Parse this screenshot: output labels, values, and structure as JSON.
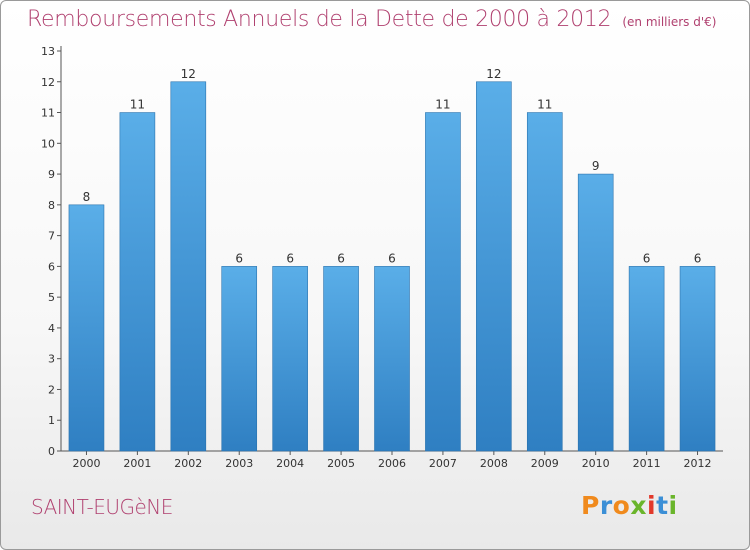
{
  "header": {
    "title": "Remboursements Annuels de la Dette de 2000 à 2012",
    "unit": "(en milliers d'€)"
  },
  "footer": {
    "location": "SAINT-EUGèNE",
    "logo": "Proxiti",
    "logo_colors": [
      "#f08a1d",
      "#3b8fd6",
      "#f08a1d",
      "#6ab52b",
      "#e2392b",
      "#3b8fd6",
      "#6ab52b"
    ]
  },
  "colors": {
    "bar_top": "#5aaee8",
    "bar_bottom": "#2f7fc2",
    "title": "#b0406f",
    "text": "#333333"
  },
  "chart_data": {
    "type": "bar",
    "categories": [
      "2000",
      "2001",
      "2002",
      "2003",
      "2004",
      "2005",
      "2006",
      "2007",
      "2008",
      "2009",
      "2010",
      "2011",
      "2012"
    ],
    "values": [
      8,
      11,
      12,
      6,
      6,
      6,
      6,
      11,
      12,
      11,
      9,
      6,
      6
    ],
    "data_labels": [
      "8",
      "11",
      "12",
      "6",
      "6",
      "6",
      "6",
      "11",
      "12",
      "11",
      "9",
      "6",
      "6"
    ],
    "y_ticks": [
      "0",
      "1",
      "2",
      "3",
      "4",
      "5",
      "6",
      "7",
      "8",
      "9",
      "10",
      "11",
      "12",
      "13"
    ],
    "ylim": [
      0,
      13
    ],
    "grid": false
  }
}
